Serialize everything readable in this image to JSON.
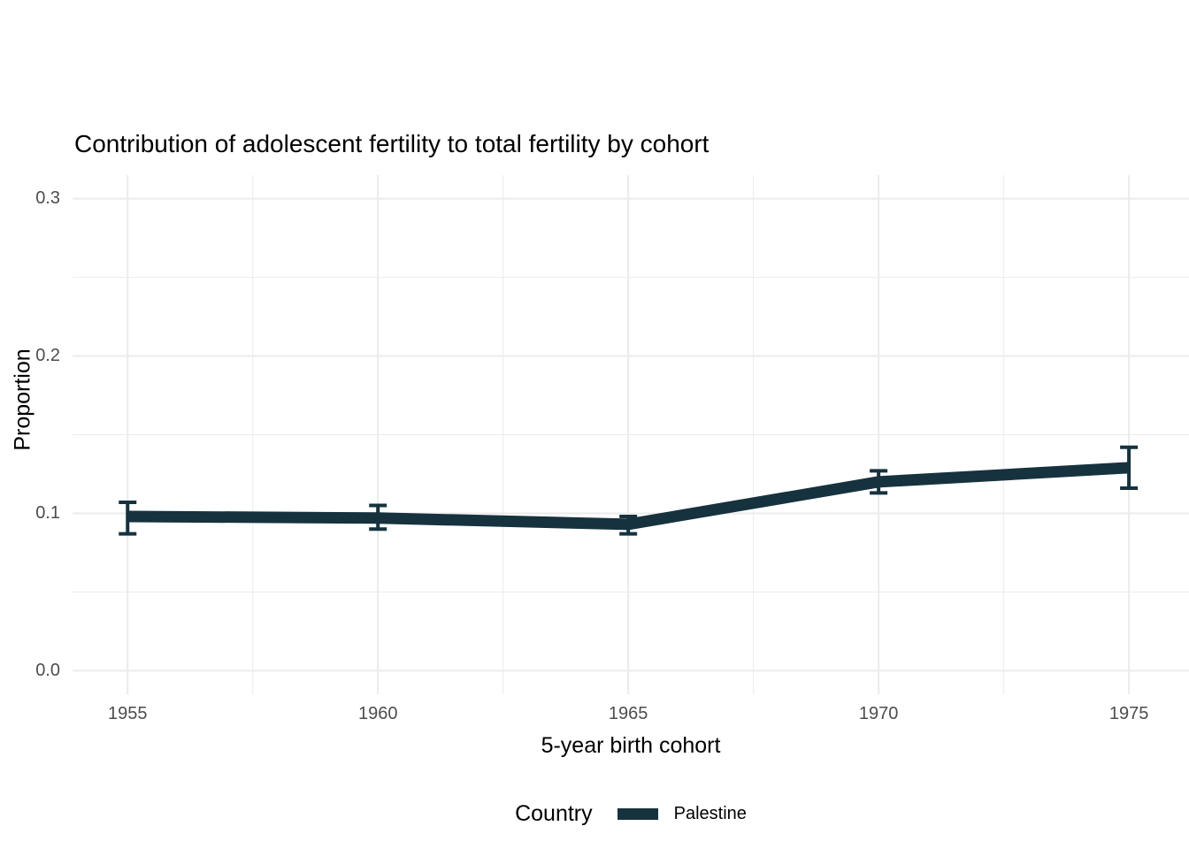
{
  "page": {
    "background": "#ffffff"
  },
  "chart_data": {
    "type": "line",
    "title": "Contribution of adolescent fertility to total fertility by cohort",
    "xlabel": "5-year birth cohort",
    "ylabel": "Proportion",
    "x": [
      1955,
      1960,
      1965,
      1970,
      1975
    ],
    "series": [
      {
        "name": "Palestine",
        "values": [
          0.098,
          0.097,
          0.093,
          0.12,
          0.129
        ],
        "error_low": [
          0.087,
          0.09,
          0.087,
          0.113,
          0.116
        ],
        "error_high": [
          0.107,
          0.105,
          0.098,
          0.127,
          0.142
        ],
        "color": "#16323e"
      }
    ],
    "xlim": [
      1953.9,
      1976.2
    ],
    "ylim": [
      -0.015,
      0.315
    ],
    "xticks": [
      1955,
      1960,
      1965,
      1970,
      1975
    ],
    "xtick_labels": [
      "1955",
      "1960",
      "1965",
      "1970",
      "1975"
    ],
    "yticks": [
      0,
      0.1,
      0.2,
      0.3
    ],
    "ytick_labels": [
      "0.0",
      "0.1",
      "0.2",
      "0.3"
    ],
    "x_minor": [
      1957.5,
      1962.5,
      1967.5,
      1972.5
    ],
    "y_minor": [
      0.05,
      0.15,
      0.25
    ],
    "grid": "on",
    "legend_position": "bottom",
    "colors": {
      "line": "#16323e",
      "grid": "#ebebeb",
      "tick_text": "#4d4d4d",
      "text": "#000000",
      "background": "#ffffff"
    }
  },
  "legend": {
    "title": "Country",
    "items": [
      {
        "label": "Palestine",
        "color": "#16323e"
      }
    ]
  }
}
